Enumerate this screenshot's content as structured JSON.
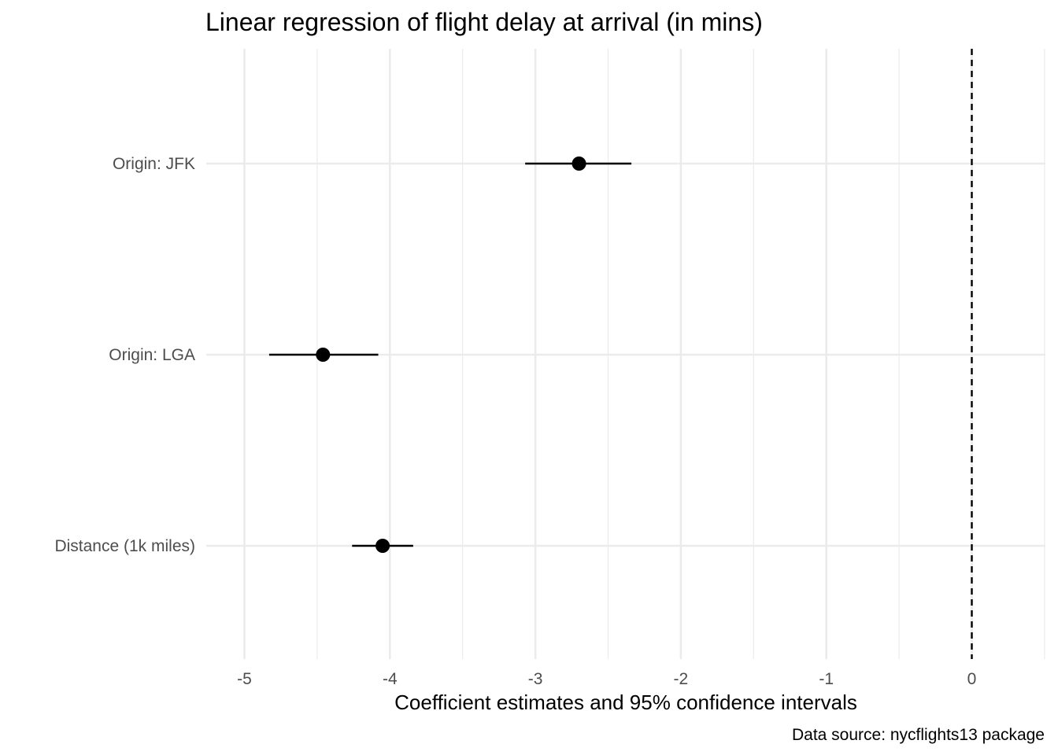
{
  "chart_data": {
    "type": "scatter",
    "subtype": "coefficient-plot",
    "title": "Linear regression of flight delay at arrival (in mins)",
    "xlabel": "Coefficient estimates and 95% confidence intervals",
    "ylabel": "",
    "caption": "Data source: nycflights13 package",
    "xlim": [
      -5.15,
      0.5
    ],
    "x_ticks": [
      -5,
      -4,
      -3,
      -2,
      -1,
      0
    ],
    "x_tick_labels": [
      "-5",
      "-4",
      "-3",
      "-2",
      "-1",
      "0"
    ],
    "grid": true,
    "reference_line": {
      "x": 0,
      "style": "dashed"
    },
    "categories": [
      "Origin: JFK",
      "Origin: LGA",
      "Distance (1k miles)"
    ],
    "series": [
      {
        "estimates": [
          -2.7,
          -4.46,
          -4.05
        ],
        "ci_low": [
          -3.07,
          -4.83,
          -4.26
        ],
        "ci_high": [
          -2.34,
          -4.08,
          -3.84
        ]
      }
    ],
    "colors": {
      "point": "#000000",
      "grid": "#ebebeb",
      "tick_text": "#4d4d4d"
    }
  }
}
